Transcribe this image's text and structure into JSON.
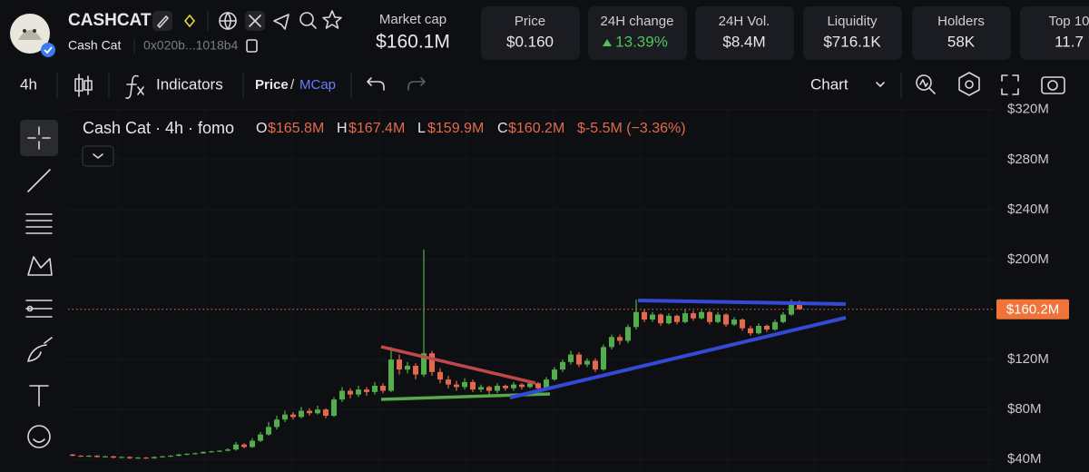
{
  "header": {
    "symbol": "CASHCAT",
    "name": "Cash Cat",
    "address": "0x020b...1018b4",
    "market_cap": {
      "label": "Market cap",
      "value": "$160.1M"
    },
    "stats": [
      {
        "label": "Price",
        "value": "$0.160"
      },
      {
        "label": "24H change",
        "value": "13.39%",
        "trend": "up"
      },
      {
        "label": "24H Vol.",
        "value": "$8.4M"
      },
      {
        "label": "Liquidity",
        "value": "$716.1K"
      },
      {
        "label": "Holders",
        "value": "58K"
      },
      {
        "label": "Top 10",
        "value": "11.7"
      }
    ]
  },
  "toolbar": {
    "interval": "4h",
    "indicators": "Indicators",
    "price": "Price",
    "separator": "/",
    "mcap": "MCap",
    "chart_menu": "Chart"
  },
  "chart_data": {
    "type": "candlestick",
    "legend": {
      "title": "Cash Cat · 4h · fomo",
      "items": [
        {
          "key": "O",
          "value": "$165.8M"
        },
        {
          "key": "H",
          "value": "$167.4M"
        },
        {
          "key": "L",
          "value": "$159.9M"
        },
        {
          "key": "C",
          "value": "$160.2M"
        }
      ],
      "change": "$-5.5M (−3.36%)"
    },
    "up_color": "#52ad4a",
    "down_color": "#e4694a",
    "ylim": [
      30,
      322
    ],
    "yticks": [
      {
        "value": 40,
        "label": "$40M"
      },
      {
        "value": 80,
        "label": "$80M"
      },
      {
        "value": 120,
        "label": "$120M"
      },
      {
        "value": 200,
        "label": "$200M"
      },
      {
        "value": 240,
        "label": "$240M"
      },
      {
        "value": 280,
        "label": "$280M"
      },
      {
        "value": 320,
        "label": "$320M"
      }
    ],
    "current_price": {
      "value": 160.2,
      "label": "$160.2M",
      "color": "#f0743a"
    },
    "ohlc": [
      [
        44,
        44.5,
        42.5,
        43
      ],
      [
        43,
        43.5,
        42,
        42.5
      ],
      [
        42.5,
        43.5,
        42,
        43
      ],
      [
        43,
        43.5,
        41.5,
        42
      ],
      [
        42,
        43,
        41.5,
        42.5
      ],
      [
        42.5,
        43,
        41,
        41.5
      ],
      [
        41.5,
        42.5,
        41,
        42
      ],
      [
        42,
        42.5,
        40.5,
        41
      ],
      [
        41,
        42,
        40.5,
        41.5
      ],
      [
        41.5,
        42,
        40.5,
        41
      ],
      [
        41,
        42.5,
        40.5,
        42
      ],
      [
        42,
        43,
        41.5,
        42.5
      ],
      [
        42.5,
        43.5,
        42,
        43
      ],
      [
        43,
        44.5,
        42.5,
        44
      ],
      [
        44,
        45,
        43.5,
        44.5
      ],
      [
        44.5,
        45.5,
        44,
        45
      ],
      [
        45,
        46.5,
        44.5,
        46
      ],
      [
        46,
        47,
        45.5,
        46.5
      ],
      [
        46.5,
        47.5,
        46,
        47
      ],
      [
        47,
        49,
        46.5,
        48
      ],
      [
        48,
        54,
        47,
        52
      ],
      [
        52,
        53,
        49,
        50
      ],
      [
        50,
        57,
        49.5,
        55
      ],
      [
        55,
        62,
        54,
        60
      ],
      [
        60,
        70,
        59,
        66
      ],
      [
        66,
        75,
        64,
        72
      ],
      [
        72,
        79,
        70,
        76
      ],
      [
        76,
        78,
        72,
        74
      ],
      [
        74,
        82,
        73,
        79
      ],
      [
        79,
        81,
        75,
        77
      ],
      [
        77,
        83,
        76,
        80
      ],
      [
        80,
        81,
        73,
        75
      ],
      [
        75,
        90,
        74,
        88
      ],
      [
        88,
        98,
        86,
        95
      ],
      [
        95,
        97,
        89,
        92
      ],
      [
        92,
        99,
        90,
        96
      ],
      [
        96,
        98,
        91,
        94
      ],
      [
        94,
        102,
        92,
        99
      ],
      [
        99,
        101,
        93,
        95
      ],
      [
        95,
        130,
        94,
        120
      ],
      [
        120,
        124,
        108,
        112
      ],
      [
        112,
        118,
        109,
        115
      ],
      [
        115,
        117,
        104,
        108
      ],
      [
        108,
        208,
        106,
        125
      ],
      [
        125,
        127,
        107,
        110
      ],
      [
        110,
        113,
        101,
        104
      ],
      [
        104,
        107,
        97,
        100
      ],
      [
        100,
        103,
        95,
        98
      ],
      [
        98,
        105,
        96,
        102
      ],
      [
        102,
        104,
        94,
        96
      ],
      [
        96,
        100,
        94,
        98
      ],
      [
        98,
        99,
        92,
        95
      ],
      [
        95,
        101,
        93,
        99
      ],
      [
        99,
        100,
        95,
        97
      ],
      [
        97,
        102,
        95,
        100
      ],
      [
        100,
        101,
        96,
        98
      ],
      [
        98,
        103,
        97,
        101
      ],
      [
        101,
        102,
        95,
        97
      ],
      [
        97,
        106,
        96,
        104
      ],
      [
        104,
        114,
        103,
        112
      ],
      [
        112,
        120,
        110,
        118
      ],
      [
        118,
        127,
        116,
        124
      ],
      [
        124,
        126,
        114,
        116
      ],
      [
        116,
        121,
        114,
        119
      ],
      [
        119,
        121,
        110,
        112
      ],
      [
        112,
        132,
        111,
        130
      ],
      [
        130,
        140,
        128,
        138
      ],
      [
        138,
        140,
        132,
        135
      ],
      [
        135,
        148,
        133,
        146
      ],
      [
        146,
        168,
        144,
        158
      ],
      [
        158,
        160,
        150,
        152
      ],
      [
        152,
        158,
        150,
        156
      ],
      [
        156,
        157,
        147,
        149
      ],
      [
        149,
        157,
        148,
        155
      ],
      [
        155,
        156,
        148,
        150
      ],
      [
        150,
        160,
        149,
        157
      ],
      [
        157,
        159,
        151,
        153
      ],
      [
        153,
        160,
        152,
        158
      ],
      [
        158,
        159,
        148,
        150
      ],
      [
        150,
        158,
        149,
        156
      ],
      [
        156,
        157,
        146,
        148
      ],
      [
        148,
        154,
        147,
        152
      ],
      [
        152,
        153,
        143,
        145
      ],
      [
        145,
        147,
        139,
        141
      ],
      [
        141,
        149,
        140,
        147
      ],
      [
        147,
        148,
        142,
        144
      ],
      [
        144,
        152,
        143,
        150
      ],
      [
        150,
        158,
        149,
        156
      ],
      [
        156,
        168,
        155,
        165.8
      ],
      [
        165.8,
        167.4,
        159.9,
        160.2
      ]
    ]
  }
}
